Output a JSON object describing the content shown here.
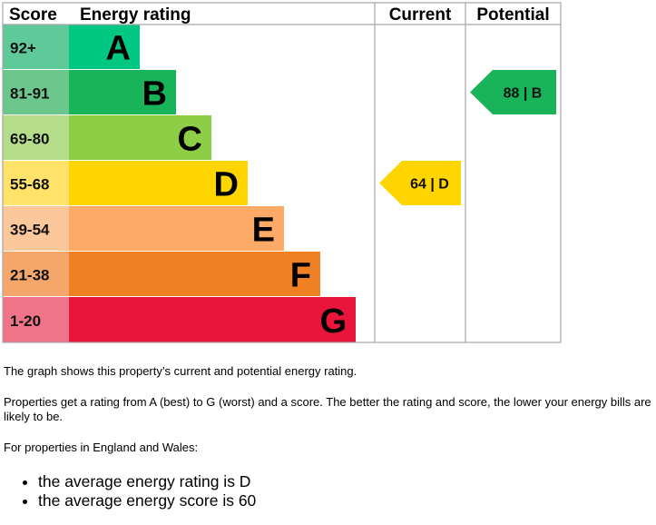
{
  "chart_data": {
    "type": "bar",
    "headers": {
      "score": "Score",
      "rating": "Energy rating",
      "current": "Current",
      "potential": "Potential"
    },
    "bands": [
      {
        "letter": "A",
        "range": "92+",
        "color": "#00c781",
        "score_bg": "#5fc99a"
      },
      {
        "letter": "B",
        "range": "81-91",
        "color": "#19b459",
        "score_bg": "#6cc78d"
      },
      {
        "letter": "C",
        "range": "69-80",
        "color": "#8dce46",
        "score_bg": "#b6de8a"
      },
      {
        "letter": "D",
        "range": "55-68",
        "color": "#ffd500",
        "score_bg": "#ffe36b"
      },
      {
        "letter": "E",
        "range": "39-54",
        "color": "#fcaa65",
        "score_bg": "#fcc79a"
      },
      {
        "letter": "F",
        "range": "21-38",
        "color": "#ef8023",
        "score_bg": "#f4a66b"
      },
      {
        "letter": "G",
        "range": "1-20",
        "color": "#e9153b",
        "score_bg": "#f07488"
      }
    ],
    "current": {
      "score": 64,
      "band": "D",
      "label": "64 | D",
      "color": "#ffd500"
    },
    "potential": {
      "score": 88,
      "band": "B",
      "label": "88 | B",
      "color": "#19b459"
    }
  },
  "text": {
    "p1": "The graph shows this property’s current and potential energy rating.",
    "p2": "Properties get a rating from A (best) to G (worst) and a score. The better the rating and score, the lower your energy bills are likely to be.",
    "p3": "For properties in England and Wales:",
    "bullets": [
      "the average energy rating is D",
      "the average energy score is 60"
    ]
  }
}
